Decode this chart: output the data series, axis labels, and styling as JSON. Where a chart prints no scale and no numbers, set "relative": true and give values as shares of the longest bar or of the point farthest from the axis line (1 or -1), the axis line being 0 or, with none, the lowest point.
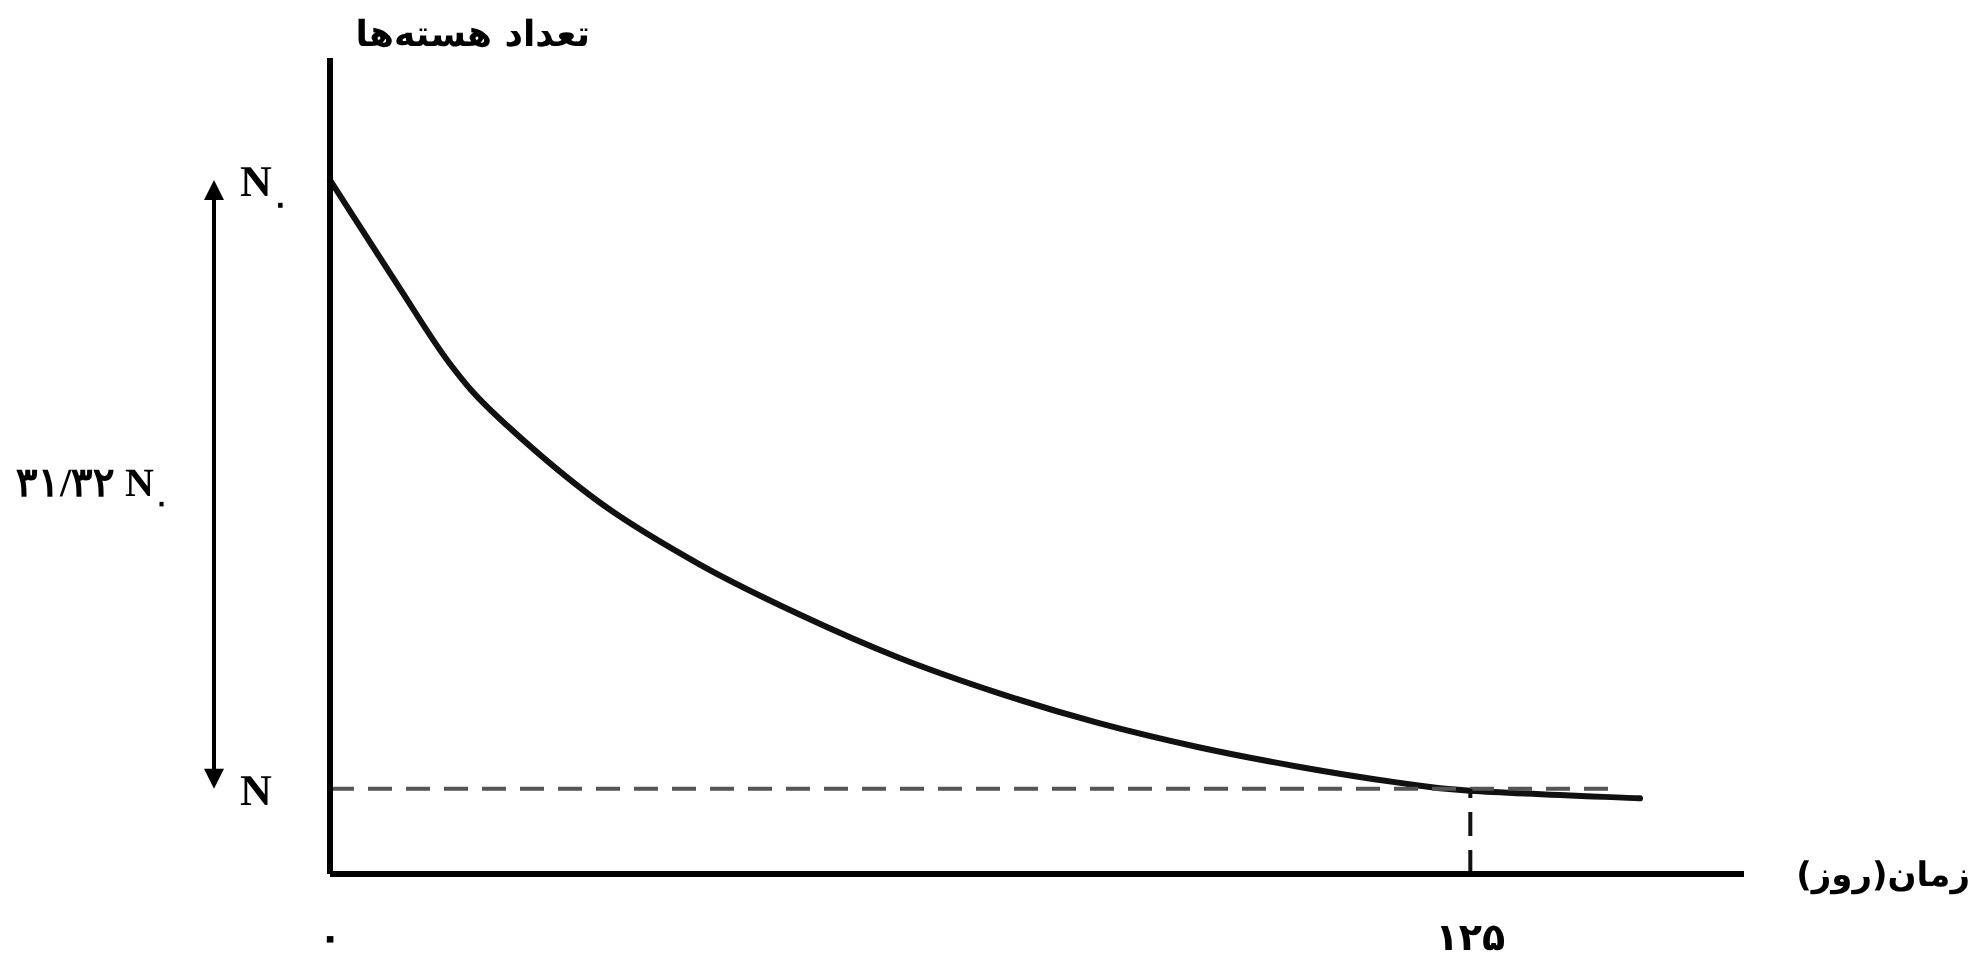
{
  "chart_data": {
    "type": "line",
    "relative": true,
    "xlabel": "زمان(روز)",
    "ylabel": "تعداد هسته‌ها",
    "xlim": [
      0,
      155
    ],
    "xticks": [
      {
        "value": 0,
        "label": "۰"
      },
      {
        "value": 125,
        "label": "۱۲۵"
      }
    ],
    "x": [
      0,
      4.4,
      7.6,
      13.1,
      18.6,
      29.5,
      40.4,
      51.3,
      62.3,
      73.2,
      84.1,
      95.1,
      106,
      116.9,
      125,
      143.6
    ],
    "series": [
      {
        "color": "#111111",
        "values": [
          1.0,
          0.91,
          0.845,
          0.736,
          0.656,
          0.536,
          0.447,
          0.375,
          0.312,
          0.261,
          0.218,
          0.183,
          0.155,
          0.132,
          0.12,
          0.109
        ]
      }
    ],
    "ref_lines": [
      {
        "axis": "y",
        "value": 0.123,
        "label": "N",
        "color": "#555555",
        "line_style": "dashed"
      },
      {
        "axis": "x",
        "value": 125,
        "color": "#111111",
        "line_style": "dashed"
      }
    ],
    "annotations": [
      "N$_{۰}$",
      "۳۱/۳۲ N$_{۰}$"
    ],
    "grid": false,
    "marker": "none",
    "line_style": "solid"
  }
}
